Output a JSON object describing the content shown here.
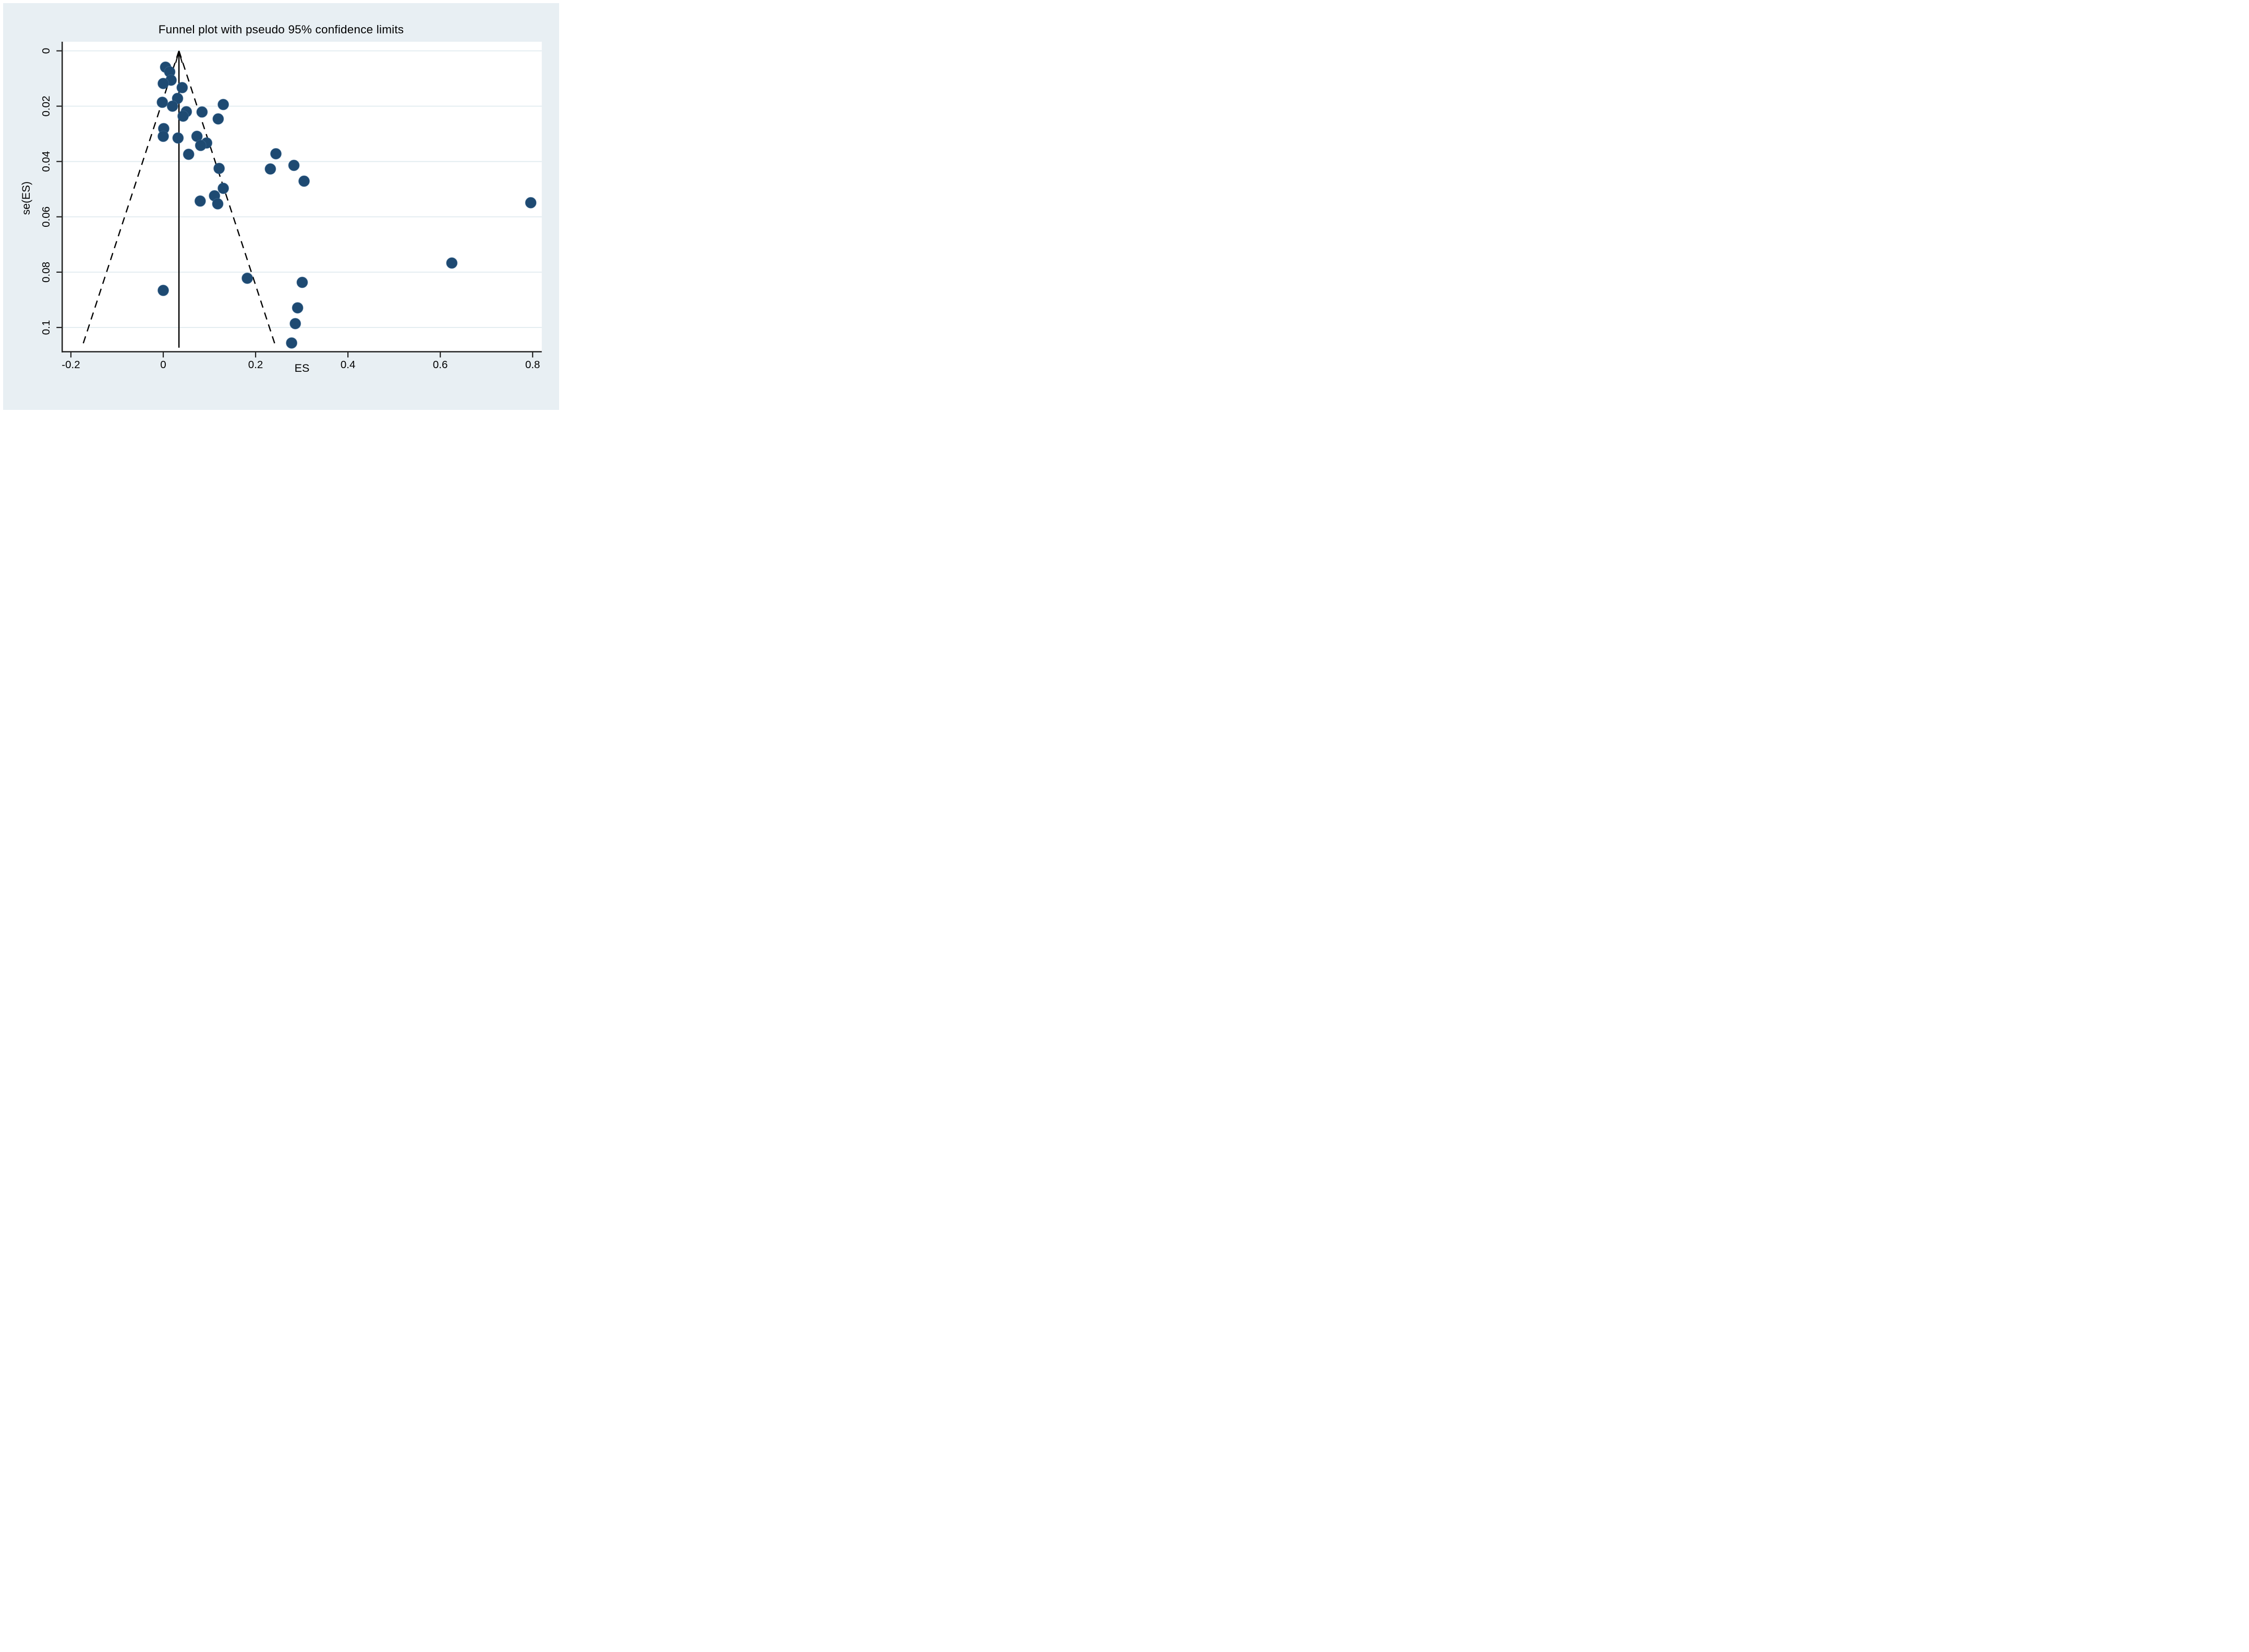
{
  "title": "Funnel plot with pseudo 95% confidence limits",
  "chart_data": {
    "type": "scatter",
    "title": "Funnel plot with pseudo 95% confidence limits",
    "xlabel": "ES",
    "ylabel": "se(ES)",
    "x_axis": {
      "min": -0.219,
      "max": 0.82,
      "ticks": [
        -0.2,
        0,
        0.2,
        0.4,
        0.6,
        0.8
      ],
      "tick_labels": [
        "-0.2",
        "0",
        "0.2",
        "0.4",
        "0.6",
        "0.8"
      ]
    },
    "y_axis": {
      "note": "standard error axis, 0 at top, increases downward",
      "min": -0.0033,
      "max": 0.1088,
      "ticks": [
        0,
        0.02,
        0.04,
        0.06,
        0.08,
        0.1
      ],
      "tick_labels": [
        "0",
        "0.02",
        "0.04",
        "0.06",
        "0.08",
        "0.1"
      ]
    },
    "grid": true,
    "legend": false,
    "pooled_effect_line": {
      "es": 0.034,
      "se_top": 0,
      "se_bottom": 0.1073,
      "style": "solid-arrow-up"
    },
    "funnel_limits": {
      "apex_es": 0.034,
      "apex_se": 0,
      "z": 1.96,
      "max_se": 0.1058,
      "style": "dashed"
    },
    "points": [
      {
        "es": 0.005,
        "se": 0.0059
      },
      {
        "es": 0.014,
        "se": 0.0076
      },
      {
        "es": 0.017,
        "se": 0.0106
      },
      {
        "es": 0.0,
        "se": 0.0118
      },
      {
        "es": 0.041,
        "se": 0.0133
      },
      {
        "es": 0.031,
        "se": 0.0172
      },
      {
        "es": -0.002,
        "se": 0.0186
      },
      {
        "es": 0.13,
        "se": 0.0194
      },
      {
        "es": 0.02,
        "se": 0.02
      },
      {
        "es": 0.05,
        "se": 0.022
      },
      {
        "es": 0.084,
        "se": 0.0221
      },
      {
        "es": 0.043,
        "se": 0.0236
      },
      {
        "es": 0.119,
        "se": 0.0246
      },
      {
        "es": 0.001,
        "se": 0.0281
      },
      {
        "es": 0.0,
        "se": 0.0309
      },
      {
        "es": 0.032,
        "se": 0.0315
      },
      {
        "es": 0.073,
        "se": 0.0309
      },
      {
        "es": 0.094,
        "se": 0.0333
      },
      {
        "es": 0.081,
        "se": 0.0342
      },
      {
        "es": 0.055,
        "se": 0.0374
      },
      {
        "es": 0.244,
        "se": 0.0372
      },
      {
        "es": 0.283,
        "se": 0.0414
      },
      {
        "es": 0.121,
        "se": 0.0425
      },
      {
        "es": 0.232,
        "se": 0.0427
      },
      {
        "es": 0.305,
        "se": 0.0471
      },
      {
        "es": 0.13,
        "se": 0.0497
      },
      {
        "es": 0.111,
        "se": 0.0524
      },
      {
        "es": 0.08,
        "se": 0.0543
      },
      {
        "es": 0.118,
        "se": 0.0553
      },
      {
        "es": 0.796,
        "se": 0.0549
      },
      {
        "es": 0.625,
        "se": 0.0767
      },
      {
        "es": 0.182,
        "se": 0.0822
      },
      {
        "es": 0.301,
        "se": 0.0837
      },
      {
        "es": 0.0,
        "se": 0.0866
      },
      {
        "es": 0.291,
        "se": 0.0929
      },
      {
        "es": 0.286,
        "se": 0.0986
      },
      {
        "es": 0.278,
        "se": 0.1056
      }
    ],
    "colors": {
      "panel_bg": "#e8eff3",
      "plot_bg": "#ffffff",
      "marker": "#1e4a72",
      "marker_halo": "#416f99",
      "gridline": "#e4edf1",
      "axis": "#222222",
      "reference_lines": "#000000"
    }
  }
}
